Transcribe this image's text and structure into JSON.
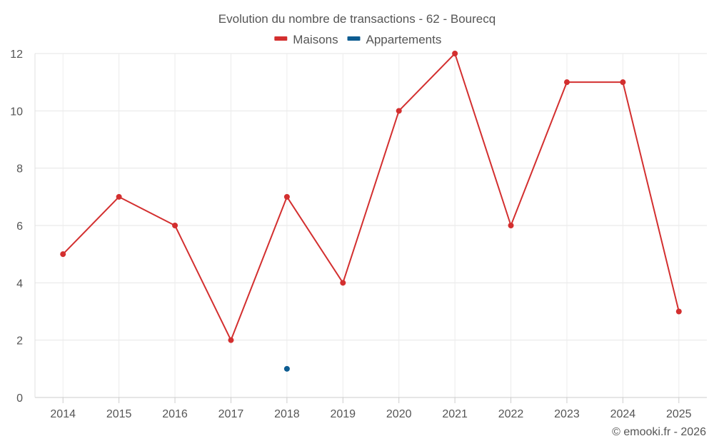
{
  "chart_data": {
    "type": "line",
    "title": "Evolution du nombre de transactions - 62 - Bourecq",
    "xlabel": "",
    "ylabel": "",
    "x": [
      "2014",
      "2015",
      "2016",
      "2017",
      "2018",
      "2019",
      "2020",
      "2021",
      "2022",
      "2023",
      "2024",
      "2025"
    ],
    "ylim": [
      0,
      12
    ],
    "yticks": [
      0,
      2,
      4,
      6,
      8,
      10,
      12
    ],
    "grid": true,
    "legend_position": "top-center",
    "series": [
      {
        "name": "Maisons",
        "color": "#d32f2f",
        "values": [
          5,
          7,
          6,
          2,
          7,
          4,
          10,
          12,
          6,
          11,
          11,
          3
        ]
      },
      {
        "name": "Appartements",
        "color": "#0d5c91",
        "values": [
          null,
          null,
          null,
          null,
          1,
          null,
          null,
          null,
          null,
          null,
          null,
          null
        ]
      }
    ]
  },
  "credit": "© emooki.fr - 2026"
}
